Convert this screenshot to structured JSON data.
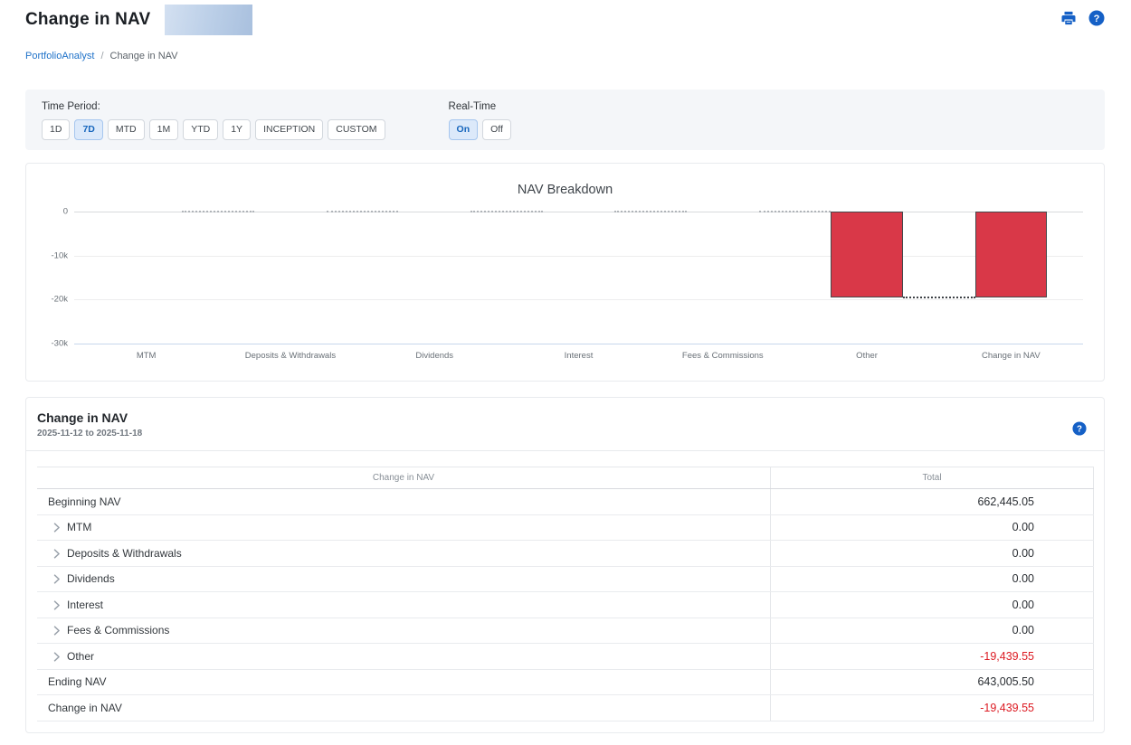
{
  "header": {
    "title": "Change in NAV",
    "print_icon": "printer-icon",
    "help_icon": "help-icon",
    "account_name_redacted": true
  },
  "breadcrumb": {
    "items": [
      {
        "label": "PortfolioAnalyst",
        "link": true
      },
      {
        "label": "Change in NAV",
        "link": false
      }
    ],
    "separator": "/"
  },
  "filters": {
    "time_period": {
      "label": "Time Period:",
      "options": [
        "1D",
        "7D",
        "MTD",
        "1M",
        "YTD",
        "1Y",
        "INCEPTION",
        "CUSTOM"
      ],
      "selected": "7D"
    },
    "real_time": {
      "label": "Real-Time",
      "options": [
        "On",
        "Off"
      ],
      "selected": "On"
    }
  },
  "chart_data": {
    "type": "bar",
    "subtype": "waterfall",
    "title": "NAV Breakdown",
    "categories": [
      "MTM",
      "Deposits & Withdrawals",
      "Dividends",
      "Interest",
      "Fees & Commissions",
      "Other",
      "Change in NAV"
    ],
    "values": [
      0,
      0,
      0,
      0,
      0,
      -19439.55,
      -19439.55
    ],
    "last_is_total": true,
    "ylim": [
      -30000,
      0
    ],
    "yticks": [
      {
        "label": "0",
        "value": 0
      },
      {
        "label": "-10k",
        "value": -10000
      },
      {
        "label": "-20k",
        "value": -20000
      },
      {
        "label": "-30k",
        "value": -30000
      }
    ],
    "grid": true,
    "legend": "none",
    "bar_color": "#d93848"
  },
  "table": {
    "title": "Change in NAV",
    "subtitle": "2025-11-12 to 2025-11-18",
    "help_icon": "help-icon",
    "columns": [
      "Change in NAV",
      "Total"
    ],
    "rows": [
      {
        "label": "Beginning NAV",
        "value": "662,445.05",
        "expandable": false,
        "negative": false
      },
      {
        "label": "MTM",
        "value": "0.00",
        "expandable": true,
        "negative": false
      },
      {
        "label": "Deposits & Withdrawals",
        "value": "0.00",
        "expandable": true,
        "negative": false
      },
      {
        "label": "Dividends",
        "value": "0.00",
        "expandable": true,
        "negative": false
      },
      {
        "label": "Interest",
        "value": "0.00",
        "expandable": true,
        "negative": false
      },
      {
        "label": "Fees & Commissions",
        "value": "0.00",
        "expandable": true,
        "negative": false
      },
      {
        "label": "Other",
        "value": "-19,439.55",
        "expandable": true,
        "negative": true
      },
      {
        "label": "Ending NAV",
        "value": "643,005.50",
        "expandable": false,
        "negative": false
      },
      {
        "label": "Change in NAV",
        "value": "-19,439.55",
        "expandable": false,
        "negative": true
      }
    ]
  },
  "colors": {
    "accent_blue": "#1766bd",
    "link_blue": "#2173c9",
    "icon_blue": "#1560c6",
    "negative_red": "#dc1a22",
    "bar_red": "#d93848",
    "zero_line": "#d8dadc",
    "grid_line": "#ededee",
    "axis_line": "#c7d7ec",
    "connector": "#b0b4b9",
    "connector_dark": "#3e4247"
  }
}
